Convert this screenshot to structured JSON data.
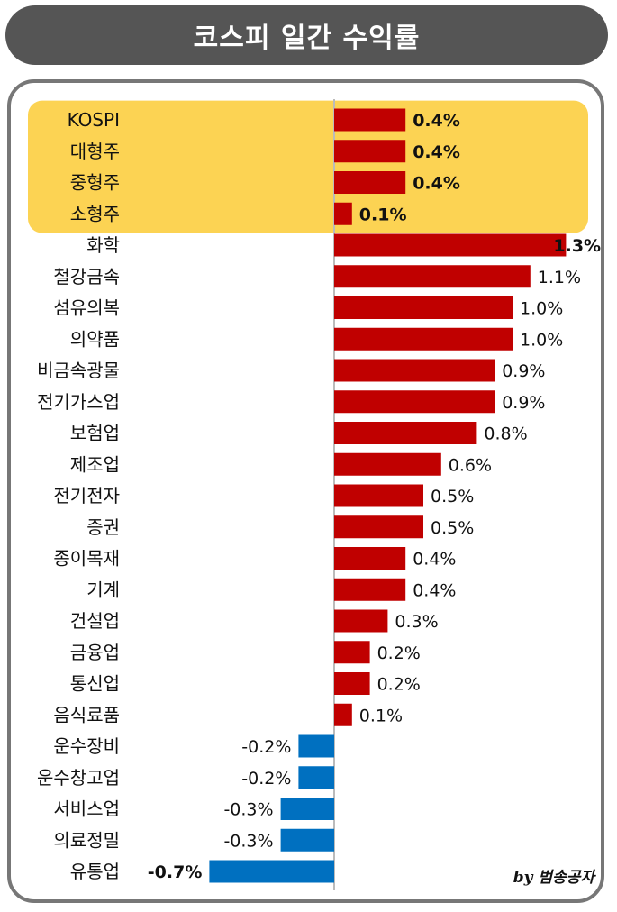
{
  "title": "코스피 일간 수익률",
  "byline": "by 범송공자",
  "colors": {
    "positive": "#C00000",
    "negative": "#0070C0",
    "highlight": "#FCD353",
    "title_bg": "#555555",
    "frame": "#777777"
  },
  "chart_data": {
    "type": "bar",
    "orientation": "horizontal",
    "highlighted_categories": [
      "KOSPI",
      "대형주",
      "중형주",
      "소형주"
    ],
    "categories": [
      "KOSPI",
      "대형주",
      "중형주",
      "소형주",
      "화학",
      "철강금속",
      "섬유의복",
      "의약품",
      "비금속광물",
      "전기가스업",
      "보험업",
      "제조업",
      "전기전자",
      "증권",
      "종이목재",
      "기계",
      "건설업",
      "금융업",
      "통신업",
      "음식료품",
      "운수장비",
      "운수창고업",
      "서비스업",
      "의료정밀",
      "유통업"
    ],
    "values": [
      0.4,
      0.4,
      0.4,
      0.1,
      1.3,
      1.1,
      1.0,
      1.0,
      0.9,
      0.9,
      0.8,
      0.6,
      0.5,
      0.5,
      0.4,
      0.4,
      0.3,
      0.2,
      0.2,
      0.1,
      -0.2,
      -0.2,
      -0.3,
      -0.3,
      -0.7
    ],
    "data_labels": [
      "0.4%",
      "0.4%",
      "0.4%",
      "0.1%",
      "1.3%",
      "1.1%",
      "1.0%",
      "1.0%",
      "0.9%",
      "0.9%",
      "0.8%",
      "0.6%",
      "0.5%",
      "0.5%",
      "0.4%",
      "0.4%",
      "0.3%",
      "0.2%",
      "0.2%",
      "0.1%",
      "-0.2%",
      "-0.2%",
      "-0.3%",
      "-0.3%",
      "-0.7%"
    ],
    "bold_labels": [
      "KOSPI",
      "대형주",
      "중형주",
      "소형주",
      "화학",
      "유통업"
    ],
    "grid": false,
    "legend": "none"
  }
}
